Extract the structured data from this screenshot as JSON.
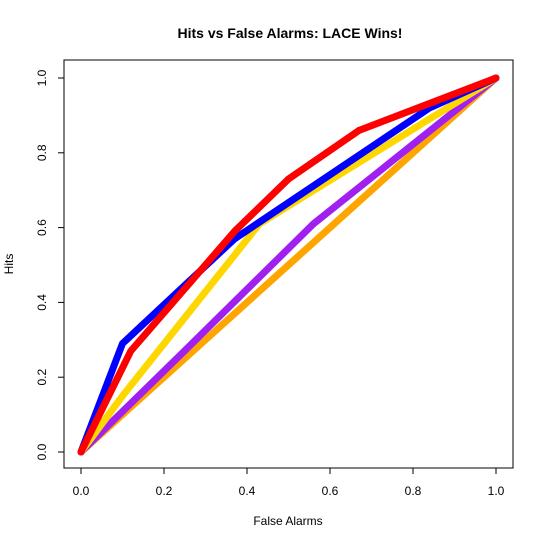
{
  "chart_data": {
    "type": "line",
    "title": "Hits vs False Alarms: LACE Wins!",
    "xlabel": "False Alarms",
    "ylabel": "Hits",
    "xlim": [
      0,
      1
    ],
    "ylim": [
      0,
      1
    ],
    "grid": false,
    "x_ticks": [
      "0.0",
      "0.2",
      "0.4",
      "0.6",
      "0.8",
      "1.0"
    ],
    "y_ticks": [
      "0.0",
      "0.2",
      "0.4",
      "0.6",
      "0.8",
      "1.0"
    ],
    "series": [
      {
        "color": "#FFA500",
        "points": [
          [
            0,
            0
          ],
          [
            1,
            1
          ]
        ]
      },
      {
        "color": "#A020F0",
        "points": [
          [
            0,
            0
          ],
          [
            0.24,
            0.26
          ],
          [
            0.56,
            0.61
          ],
          [
            1,
            1
          ]
        ]
      },
      {
        "color": "#FFD700",
        "points": [
          [
            0,
            0
          ],
          [
            0.1,
            0.15
          ],
          [
            0.43,
            0.61
          ],
          [
            1,
            1
          ]
        ]
      },
      {
        "color": "#0000FF",
        "points": [
          [
            0,
            0
          ],
          [
            0.1,
            0.29
          ],
          [
            0.37,
            0.57
          ],
          [
            0.84,
            0.92
          ],
          [
            1,
            1
          ]
        ]
      },
      {
        "color": "#FF0000",
        "points": [
          [
            0,
            0
          ],
          [
            0.12,
            0.27
          ],
          [
            0.37,
            0.59
          ],
          [
            0.5,
            0.73
          ],
          [
            0.67,
            0.86
          ],
          [
            1,
            1
          ]
        ]
      }
    ]
  }
}
